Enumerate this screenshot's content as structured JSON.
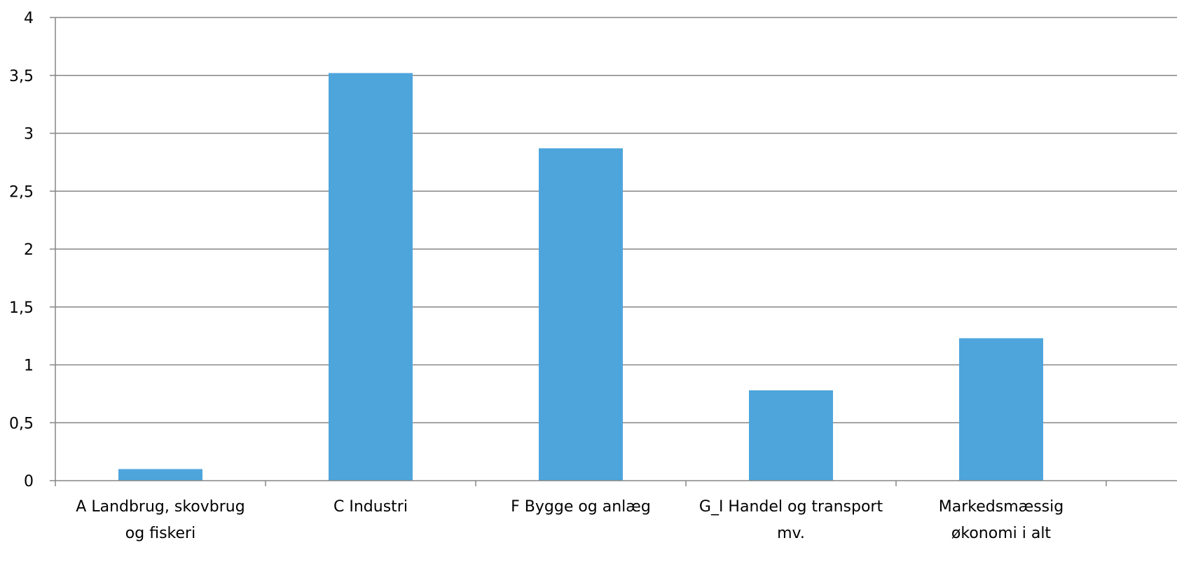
{
  "chart_data": {
    "type": "bar",
    "categories": [
      [
        "A Landbrug, skovbrug",
        "og fiskeri"
      ],
      [
        "C Industri"
      ],
      [
        "F Bygge og anlæg"
      ],
      [
        "G_I Handel og transport",
        "mv."
      ],
      [
        "Markedsmæssig",
        "økonomi i alt"
      ]
    ],
    "values": [
      0.1,
      3.52,
      2.87,
      0.78,
      1.23
    ],
    "ylim": [
      0,
      4
    ],
    "yticks": [
      "0",
      "0,5",
      "1",
      "1,5",
      "2",
      "2,5",
      "3",
      "3,5",
      "4"
    ],
    "grid": true,
    "bar_color": "#4EA5DC",
    "axis_color": "#868686"
  }
}
